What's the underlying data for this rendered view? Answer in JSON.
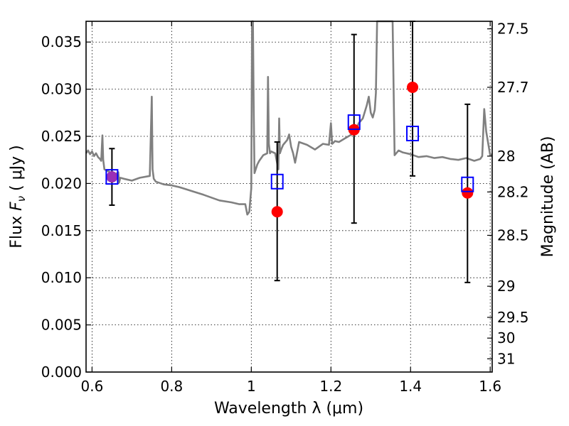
{
  "chart_data": {
    "type": "scatter",
    "xlabel": "Wavelength  λ (μm)",
    "ylabel_parts": {
      "prefix": "Flux  ",
      "symbol": "F",
      "subscript": "ν",
      "unit": "  ( μJy )"
    },
    "ylabel_right": "Magnitude (AB)",
    "xlim": [
      0.585,
      1.605
    ],
    "ylim": [
      0.0,
      0.0372
    ],
    "x_ticks": [
      0.6,
      0.8,
      1.0,
      1.2,
      1.4,
      1.6
    ],
    "x_tick_labels": [
      "0.6",
      "0.8",
      "1",
      "1.2",
      "1.4",
      "1.6"
    ],
    "y_ticks": [
      0.0,
      0.005,
      0.01,
      0.015,
      0.02,
      0.025,
      0.03,
      0.035
    ],
    "y_tick_labels": [
      "0.000",
      "0.005",
      "0.010",
      "0.015",
      "0.020",
      "0.025",
      "0.030",
      "0.035"
    ],
    "right_ticks": [
      {
        "label": "27.5",
        "flux": 0.0364
      },
      {
        "label": "27.7",
        "flux": 0.0302
      },
      {
        "label": "28",
        "flux": 0.0229
      },
      {
        "label": "28.2",
        "flux": 0.0191
      },
      {
        "label": "28.5",
        "flux": 0.0145
      },
      {
        "label": "29",
        "flux": 0.0091
      },
      {
        "label": "29.5",
        "flux": 0.0058
      },
      {
        "label": "30",
        "flux": 0.0036
      },
      {
        "label": "31",
        "flux": 0.0014
      }
    ],
    "grid": true,
    "colors": {
      "model": "#808080",
      "observed": "#ff0000",
      "model_band": "#0000ff",
      "errorbar": "#000000",
      "overlap": "#9a2fb6"
    },
    "series": [
      {
        "kind": "model_spectrum",
        "x": [
          0.585,
          0.59,
          0.595,
          0.6,
          0.605,
          0.61,
          0.615,
          0.62,
          0.623,
          0.626,
          0.628,
          0.631,
          0.64,
          0.65,
          0.66,
          0.666,
          0.668,
          0.671,
          0.68,
          0.7,
          0.72,
          0.745,
          0.75,
          0.752,
          0.755,
          0.76,
          0.78,
          0.8,
          0.82,
          0.85,
          0.88,
          0.9,
          0.92,
          0.95,
          0.97,
          0.985,
          0.99,
          0.995,
          1.0,
          1.002,
          1.004,
          1.006,
          1.008,
          1.015,
          1.02,
          1.03,
          1.04,
          1.042,
          1.044,
          1.047,
          1.05,
          1.06,
          1.068,
          1.07,
          1.072,
          1.075,
          1.08,
          1.09,
          1.095,
          1.1,
          1.105,
          1.11,
          1.12,
          1.14,
          1.16,
          1.18,
          1.195,
          1.2,
          1.203,
          1.206,
          1.21,
          1.22,
          1.24,
          1.26,
          1.27,
          1.28,
          1.29,
          1.295,
          1.3,
          1.305,
          1.31,
          1.313,
          1.316,
          1.32,
          1.33,
          1.35,
          1.355,
          1.36,
          1.37,
          1.38,
          1.4,
          1.42,
          1.44,
          1.46,
          1.48,
          1.5,
          1.52,
          1.54,
          1.56,
          1.575,
          1.58,
          1.585,
          1.59,
          1.6,
          1.605
        ],
        "y": [
          0.0232,
          0.0235,
          0.0231,
          0.0234,
          0.0229,
          0.0232,
          0.0228,
          0.0226,
          0.0224,
          0.0251,
          0.0225,
          0.0215,
          0.0213,
          0.0211,
          0.021,
          0.0212,
          0.0201,
          0.0206,
          0.0205,
          0.0203,
          0.0206,
          0.0208,
          0.0292,
          0.0215,
          0.0205,
          0.0202,
          0.0199,
          0.0198,
          0.0196,
          0.0192,
          0.0188,
          0.0185,
          0.0182,
          0.018,
          0.0178,
          0.0178,
          0.0167,
          0.017,
          0.0195,
          0.0372,
          0.0372,
          0.028,
          0.0211,
          0.022,
          0.0224,
          0.023,
          0.0232,
          0.0313,
          0.0242,
          0.0232,
          0.0234,
          0.0232,
          0.0215,
          0.0269,
          0.0232,
          0.0236,
          0.0241,
          0.0246,
          0.0252,
          0.0239,
          0.0232,
          0.0222,
          0.0244,
          0.0241,
          0.0236,
          0.0242,
          0.0241,
          0.0264,
          0.0242,
          0.0243,
          0.0245,
          0.0244,
          0.0249,
          0.0254,
          0.0264,
          0.0269,
          0.0283,
          0.0292,
          0.0275,
          0.027,
          0.0278,
          0.0296,
          0.0372,
          0.0372,
          0.0372,
          0.0372,
          0.0372,
          0.023,
          0.0235,
          0.0233,
          0.0231,
          0.0228,
          0.0229,
          0.0227,
          0.0228,
          0.0226,
          0.0225,
          0.0227,
          0.0224,
          0.0226,
          0.0229,
          0.0279,
          0.0255,
          0.023,
          0.0231
        ]
      },
      {
        "kind": "observed",
        "x": [
          0.65,
          1.065,
          1.258,
          1.405,
          1.543
        ],
        "y": [
          0.0207,
          0.017,
          0.0257,
          0.0302,
          0.019
        ],
        "yerr_low": [
          0.0177,
          0.0097,
          0.0158,
          0.0208,
          0.0095
        ],
        "yerr_high": [
          0.0237,
          0.0244,
          0.0358,
          0.0372,
          0.0284
        ]
      },
      {
        "kind": "model_band",
        "x": [
          0.65,
          1.065,
          1.258,
          1.405,
          1.543
        ],
        "y": [
          0.0207,
          0.0202,
          0.0265,
          0.0253,
          0.0199
        ]
      }
    ]
  }
}
